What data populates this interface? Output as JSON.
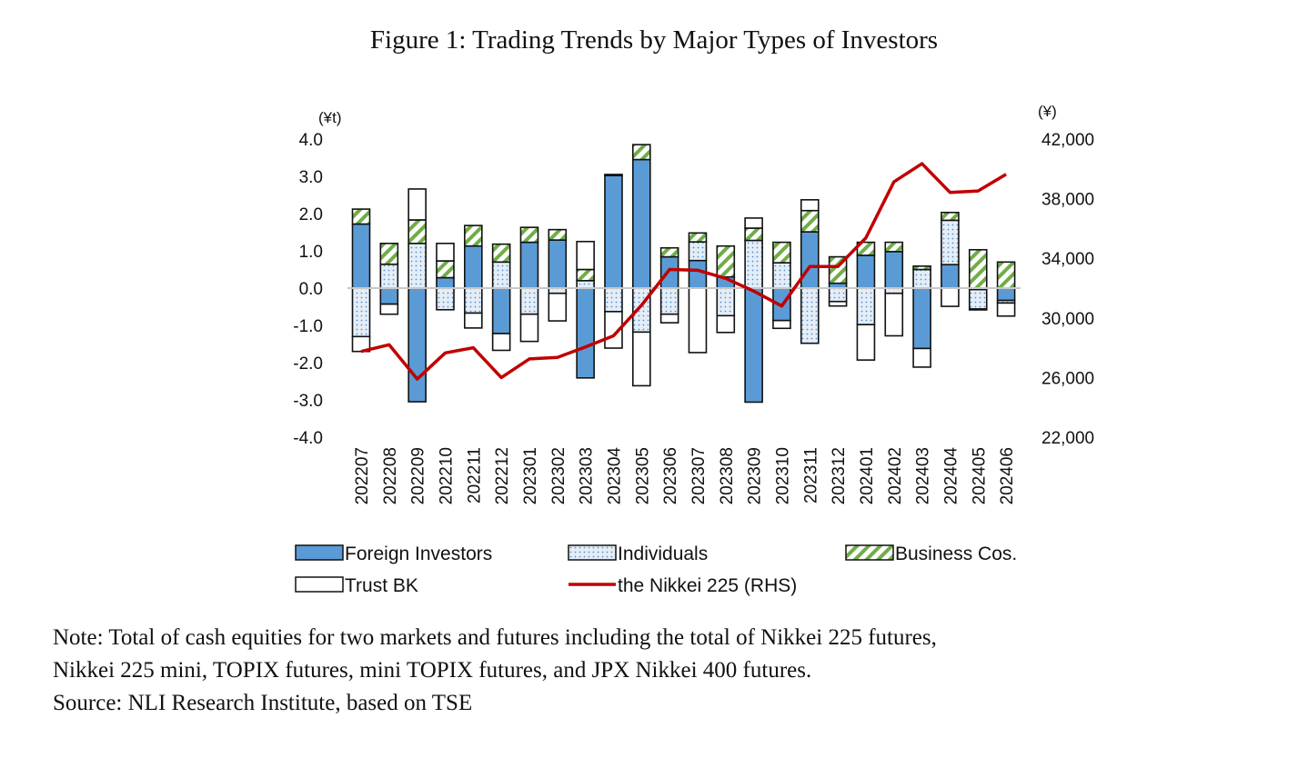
{
  "chart_data": {
    "type": "bar",
    "stacked": true,
    "title": "Figure 1: Trading Trends by Major Types of Investors",
    "ylabel_left": "(¥t)",
    "ylabel_right": "(¥)",
    "ylim": [
      -4.0,
      4.0
    ],
    "ylim_right": [
      22000,
      42000
    ],
    "yticks": [
      "4.0",
      "3.0",
      "2.0",
      "1.0",
      "0.0",
      "-1.0",
      "-2.0",
      "-3.0",
      "-4.0"
    ],
    "yticks_right": [
      "42,000",
      "38,000",
      "34,000",
      "30,000",
      "26,000",
      "22,000"
    ],
    "categories": [
      "202207",
      "202208",
      "202209",
      "202210",
      "202211",
      "202212",
      "202301",
      "202302",
      "202303",
      "202304",
      "202305",
      "202306",
      "202307",
      "202308",
      "202309",
      "202310",
      "202311",
      "202312",
      "202401",
      "202402",
      "202403",
      "202404",
      "202405",
      "202406"
    ],
    "series": [
      {
        "name": "Foreign Investors",
        "kind": "bar",
        "color": "#5b9bd5",
        "values": [
          1.72,
          -0.43,
          -3.05,
          0.28,
          1.13,
          -1.22,
          1.23,
          1.29,
          -2.41,
          3.02,
          3.45,
          0.84,
          0.74,
          0.3,
          -3.06,
          -0.87,
          1.51,
          0.13,
          0.88,
          0.98,
          -1.62,
          0.63,
          -0.04,
          -0.33
        ]
      },
      {
        "name": "Individuals",
        "kind": "bar",
        "color": "#dbe9f6",
        "values": [
          -1.3,
          0.64,
          1.2,
          -0.58,
          -0.67,
          0.7,
          -0.7,
          -0.14,
          0.2,
          -0.63,
          -1.18,
          -0.7,
          0.5,
          -0.74,
          1.28,
          0.68,
          -1.48,
          -0.36,
          -0.98,
          -0.14,
          0.5,
          1.19,
          -0.52,
          -0.07
        ]
      },
      {
        "name": "Business Cos.",
        "kind": "bar",
        "color": "#70ad47",
        "values": [
          0.4,
          0.56,
          0.63,
          0.45,
          0.55,
          0.48,
          0.4,
          0.28,
          0.3,
          0.03,
          0.4,
          0.24,
          0.24,
          0.83,
          0.33,
          0.55,
          0.57,
          0.71,
          0.35,
          0.25,
          0.09,
          0.21,
          1.03,
          0.7
        ]
      },
      {
        "name": "Trust BK",
        "kind": "bar",
        "color": "#ffffff",
        "values": [
          -0.4,
          -0.27,
          0.83,
          0.47,
          -0.4,
          -0.45,
          -0.73,
          -0.74,
          0.75,
          -0.98,
          -1.44,
          -0.23,
          -1.73,
          -0.45,
          0.27,
          -0.21,
          0.29,
          -0.12,
          -0.95,
          -1.14,
          -0.5,
          -0.49,
          -0.02,
          -0.35
        ]
      },
      {
        "name": "the Nikkei 225 (RHS)",
        "kind": "line",
        "axis": "right",
        "color": "#c00000",
        "values": [
          27750,
          28200,
          25900,
          27650,
          28000,
          26000,
          27250,
          27350,
          28050,
          28800,
          30850,
          33250,
          33200,
          32650,
          31800,
          30800,
          33450,
          33450,
          35370,
          39130,
          40350,
          38420,
          38520,
          39640
        ]
      }
    ],
    "legend": "bottom",
    "grid": false
  },
  "notes": [
    "Note: Total of cash equities for two markets and futures including the total of Nikkei 225 futures,",
    "Nikkei 225 mini, TOPIX futures, mini TOPIX futures, and JPX Nikkei 400 futures.",
    "Source: NLI Research Institute, based on TSE"
  ]
}
